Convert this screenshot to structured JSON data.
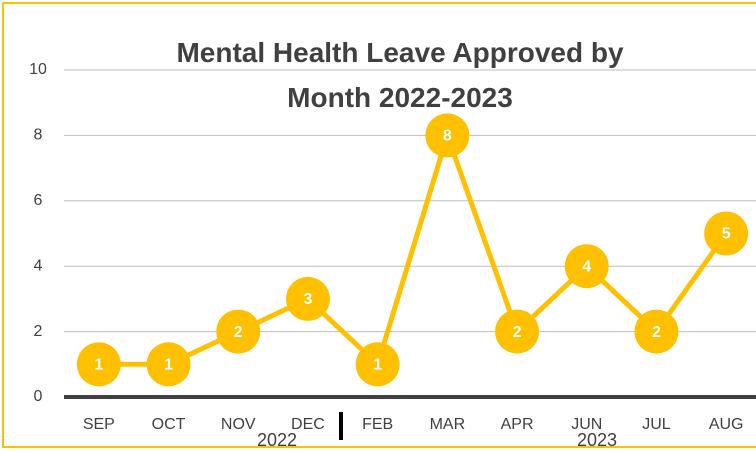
{
  "chart_data": {
    "type": "line",
    "title": "Mental Health Leave Approved by Month 2022-2023",
    "categories": [
      "SEP",
      "OCT",
      "NOV",
      "DEC",
      "FEB",
      "MAR",
      "APR",
      "JUN",
      "JUL",
      "AUG"
    ],
    "values": [
      1,
      1,
      2,
      3,
      1,
      8,
      2,
      4,
      2,
      5
    ],
    "color": "#ffc000",
    "groups": [
      "2022",
      "2023"
    ],
    "ylim": [
      0,
      10
    ],
    "yticks": [
      0,
      2,
      4,
      6,
      8,
      10
    ],
    "grid": true
  }
}
